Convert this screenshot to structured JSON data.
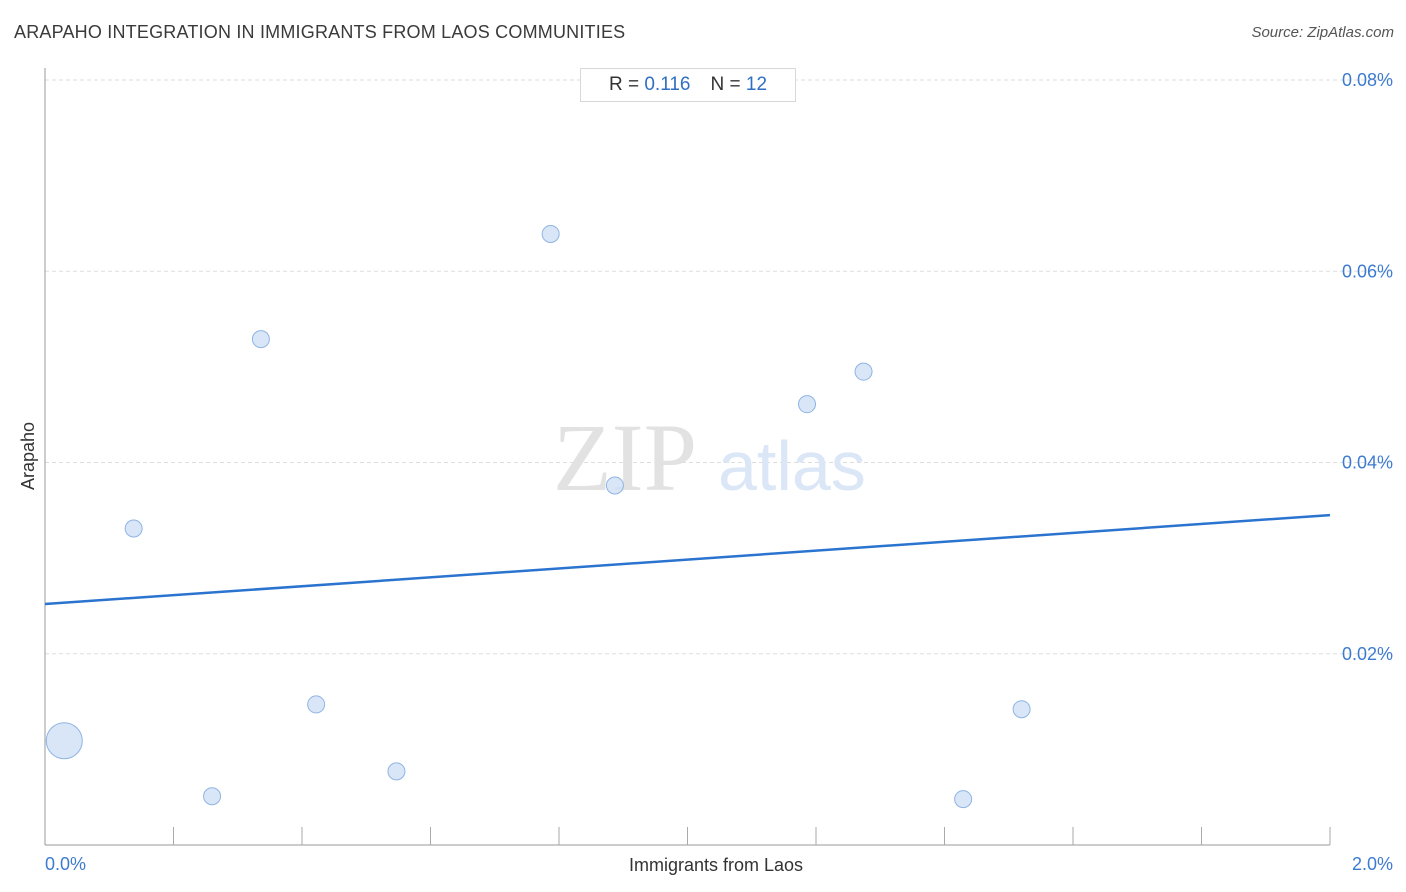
{
  "header": {
    "title": "ARAPAHO INTEGRATION IN IMMIGRANTS FROM LAOS COMMUNITIES",
    "source": "Source: ZipAtlas.com"
  },
  "stats": {
    "r_label": "R =",
    "r_value": "0.116",
    "n_label": "N =",
    "n_value": "12"
  },
  "watermark": {
    "zip": "ZIP",
    "atlas": "atlas"
  },
  "colors": {
    "accent": "#2f6fc4",
    "point_fill": "#cfe0f5",
    "point_stroke": "#8fb4e3",
    "trend": "#2a74d0",
    "grid": "#dddddd"
  },
  "chart_data": {
    "type": "scatter",
    "xlabel": "Immigrants from Laos",
    "ylabel": "Arapaho",
    "xlim": [
      0.0,
      2.0
    ],
    "ylim": [
      0.0,
      0.08
    ],
    "x_tick_labels": [
      "0.0%",
      "2.0%"
    ],
    "y_ticks": [
      0.02,
      0.04,
      0.06,
      0.08
    ],
    "y_tick_labels": [
      "0.02%",
      "0.04%",
      "0.06%",
      "0.08%"
    ],
    "grid": true,
    "points": [
      {
        "x": 0.03,
        "y": 0.0109,
        "size": "large"
      },
      {
        "x": 0.138,
        "y": 0.0331,
        "size": "small"
      },
      {
        "x": 0.26,
        "y": 0.0051,
        "size": "small"
      },
      {
        "x": 0.336,
        "y": 0.0529,
        "size": "small"
      },
      {
        "x": 0.422,
        "y": 0.0147,
        "size": "small"
      },
      {
        "x": 0.547,
        "y": 0.0077,
        "size": "small"
      },
      {
        "x": 0.787,
        "y": 0.0639,
        "size": "small"
      },
      {
        "x": 0.887,
        "y": 0.0376,
        "size": "small"
      },
      {
        "x": 1.186,
        "y": 0.0461,
        "size": "small"
      },
      {
        "x": 1.274,
        "y": 0.0495,
        "size": "small"
      },
      {
        "x": 1.429,
        "y": 0.0048,
        "size": "small"
      },
      {
        "x": 1.52,
        "y": 0.0142,
        "size": "small"
      }
    ],
    "trend_line": {
      "x": [
        0.0,
        2.0
      ],
      "y": [
        0.0252,
        0.0345
      ]
    }
  }
}
